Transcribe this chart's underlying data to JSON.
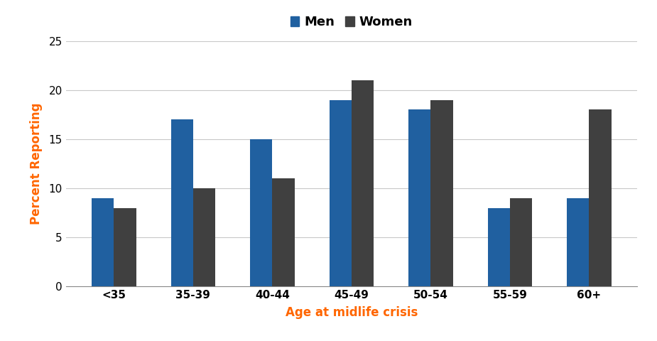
{
  "categories": [
    "<35",
    "35-39",
    "40-44",
    "45-49",
    "50-54",
    "55-59",
    "60+"
  ],
  "men_values": [
    9,
    17,
    15,
    19,
    18,
    8,
    9
  ],
  "women_values": [
    8,
    10,
    11,
    21,
    19,
    9,
    18
  ],
  "men_color": "#2060A0",
  "women_color": "#404040",
  "xlabel": "Age at midlife crisis",
  "ylabel": "Percent Reporting",
  "xlabel_color": "#FF6600",
  "ylabel_color": "#FF6600",
  "ylim": [
    0,
    25
  ],
  "yticks": [
    0,
    5,
    10,
    15,
    20,
    25
  ],
  "legend_labels": [
    "Men",
    "Women"
  ],
  "bar_width": 0.28,
  "axis_label_fontsize": 12,
  "tick_fontsize": 11,
  "legend_fontsize": 13,
  "background_color": "#ffffff",
  "grid_color": "#c8c8c8"
}
